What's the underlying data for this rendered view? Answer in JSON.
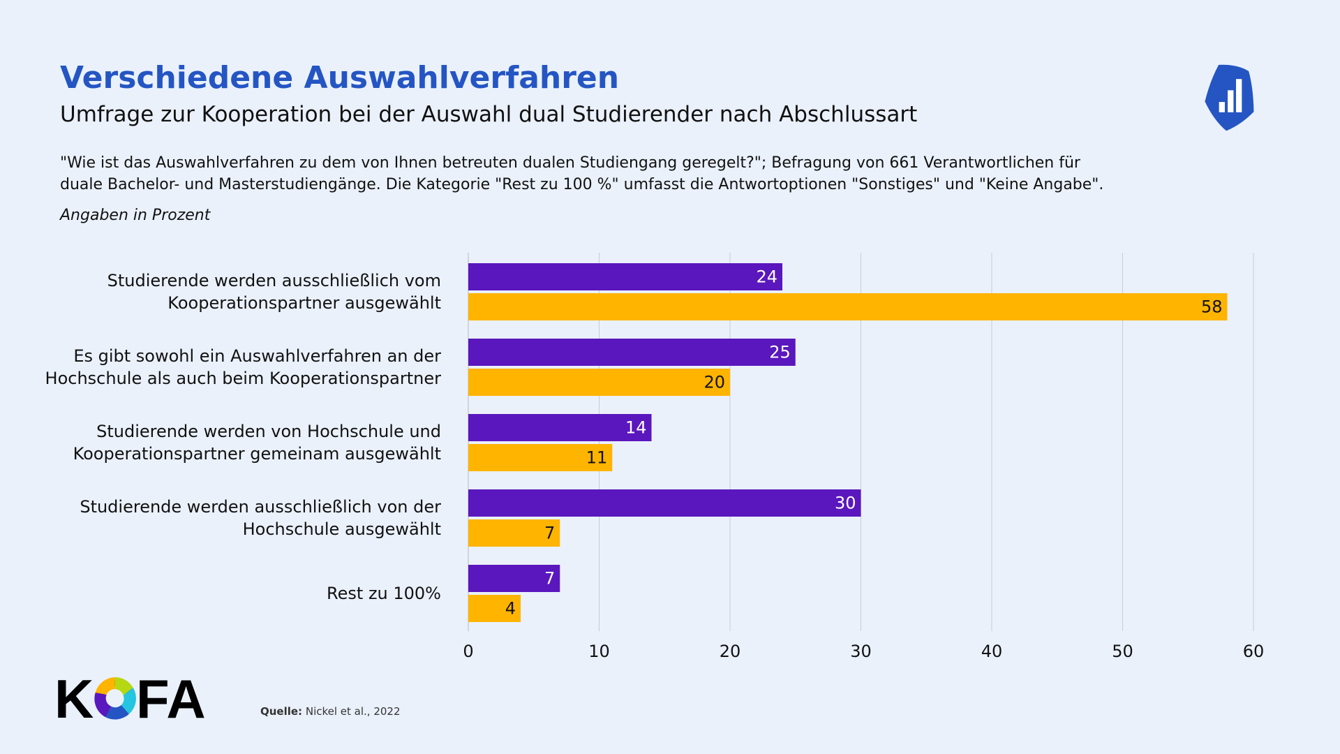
{
  "header": {
    "title": "Verschiedene Auswahlverfahren",
    "subtitle": "Umfrage zur Kooperation bei der Auswahl dual Studierender nach Abschlussart",
    "description_line1": "\"Wie ist das Auswahlverfahren zu dem von Ihnen betreuten dualen Studiengang geregelt?\"; Befragung von 661 Verantwortlichen für",
    "description_line2": "duale Bachelor- und Masterstudiengänge. Die Kategorie \"Rest zu 100 %\" umfasst die Antwortoptionen \"Sonstiges\" und \"Keine Angabe\".",
    "unit_note": "Angaben in Prozent"
  },
  "footer": {
    "source_label": "Quelle:",
    "source_text": "Nickel et al., 2022",
    "logo_text": "KOFA"
  },
  "colors": {
    "series1": "#5a17bd",
    "series2": "#ffb400",
    "title": "#2455c3",
    "background": "#eaf1fb"
  },
  "icons": {
    "badge": "bar-chart-badge-icon"
  },
  "chart_data": {
    "type": "bar",
    "orientation": "horizontal",
    "categories": [
      [
        "Studierende werden ausschließlich vom",
        "Kooperationspartner ausgewählt"
      ],
      [
        "Es gibt sowohl ein Auswahlverfahren an der",
        "Hochschule als auch beim Kooperationspartner"
      ],
      [
        "Studierende werden von Hochschule und",
        "Kooperationspartner gemeinam ausgewählt"
      ],
      [
        "Studierende werden ausschließlich von der",
        "Hochschule ausgewählt"
      ],
      [
        "Rest zu 100%"
      ]
    ],
    "series": [
      {
        "color": "#5a17bd",
        "label_color": "#ffffff",
        "values": [
          24,
          25,
          14,
          30,
          7
        ]
      },
      {
        "color": "#ffb400",
        "label_color": "#111111",
        "values": [
          58,
          20,
          11,
          7,
          4
        ]
      }
    ],
    "xlim": [
      0,
      60
    ],
    "xticks": [
      0,
      10,
      20,
      30,
      40,
      50,
      60
    ],
    "grid": true,
    "legend": "none",
    "title": "",
    "xlabel": "",
    "ylabel": ""
  }
}
